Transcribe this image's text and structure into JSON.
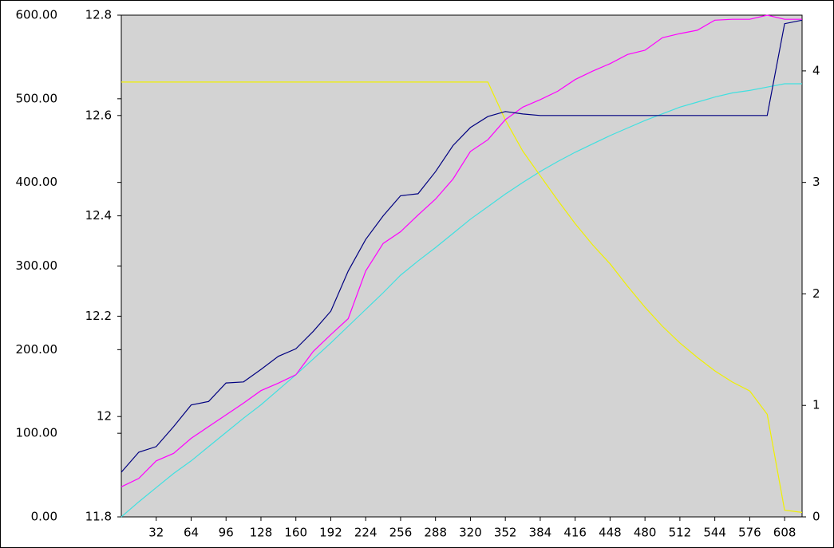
{
  "chart_data": {
    "type": "line",
    "x": [
      0,
      16,
      32,
      48,
      64,
      80,
      96,
      112,
      128,
      144,
      160,
      176,
      192,
      208,
      224,
      240,
      256,
      272,
      288,
      304,
      320,
      336,
      352,
      368,
      384,
      400,
      416,
      432,
      448,
      464,
      480,
      496,
      512,
      528,
      544,
      560,
      576,
      592,
      608,
      624
    ],
    "xlim": [
      0,
      624
    ],
    "xticks": [
      32,
      64,
      96,
      128,
      160,
      192,
      224,
      256,
      288,
      320,
      352,
      384,
      416,
      448,
      480,
      512,
      544,
      576,
      608
    ],
    "ylim": [
      0,
      600
    ],
    "yticks": [
      {
        "value": 0,
        "label": "0.00"
      },
      {
        "value": 100,
        "label": "100.00"
      },
      {
        "value": 200,
        "label": "200.00"
      },
      {
        "value": 300,
        "label": "300.00"
      },
      {
        "value": 400,
        "label": "400.00"
      },
      {
        "value": 500,
        "label": "500.00"
      },
      {
        "value": 600,
        "label": "600.00"
      }
    ],
    "y2lim": [
      11.8,
      12.8
    ],
    "y2ticks": [
      11.8,
      12,
      12.2,
      12.4,
      12.6,
      12.8
    ],
    "y3lim": [
      0,
      4.5
    ],
    "y3ticks": [
      0,
      1,
      2,
      3,
      4
    ],
    "background": "#d3d3d3",
    "series": [
      {
        "color": "#40e0e0",
        "axis": "y",
        "values": [
          0,
          18,
          35,
          52,
          67,
          84,
          101,
          118,
          134,
          152,
          170,
          189,
          208,
          228,
          248,
          268,
          289,
          306,
          322,
          339,
          356,
          371,
          386,
          400,
          413,
          425,
          436,
          446,
          456,
          465,
          474,
          482,
          490,
          496,
          502,
          507,
          510,
          514,
          518,
          518
        ]
      },
      {
        "color": "#f0f000",
        "axis": "y3",
        "values": [
          3.9,
          3.9,
          3.9,
          3.9,
          3.9,
          3.9,
          3.9,
          3.9,
          3.9,
          3.9,
          3.9,
          3.9,
          3.9,
          3.9,
          3.9,
          3.9,
          3.9,
          3.9,
          3.9,
          3.9,
          3.9,
          3.9,
          3.56,
          3.28,
          3.06,
          2.84,
          2.63,
          2.44,
          2.27,
          2.07,
          1.88,
          1.71,
          1.56,
          1.43,
          1.31,
          1.21,
          1.13,
          0.92,
          0.06,
          0.04
        ]
      },
      {
        "color": "#ff00ff",
        "axis": "y",
        "values": [
          36,
          46,
          67,
          76,
          94,
          108,
          122,
          136,
          151,
          160,
          170,
          198,
          218,
          237,
          294,
          327,
          341,
          361,
          380,
          404,
          437,
          451,
          475,
          490,
          499,
          509,
          523,
          533,
          542,
          553,
          558,
          573,
          578,
          582,
          594,
          595,
          595,
          600,
          595,
          595
        ]
      },
      {
        "color": "#000080",
        "axis": "y2",
        "values": [
          11.889,
          11.929,
          11.94,
          11.98,
          12.023,
          12.03,
          12.067,
          12.069,
          12.094,
          12.12,
          12.135,
          12.17,
          12.21,
          12.29,
          12.353,
          12.4,
          12.44,
          12.444,
          12.488,
          12.54,
          12.576,
          12.598,
          12.608,
          12.603,
          12.6,
          12.6,
          12.6,
          12.6,
          12.6,
          12.6,
          12.6,
          12.6,
          12.6,
          12.6,
          12.6,
          12.6,
          12.6,
          12.6,
          12.783,
          12.79
        ]
      }
    ]
  }
}
